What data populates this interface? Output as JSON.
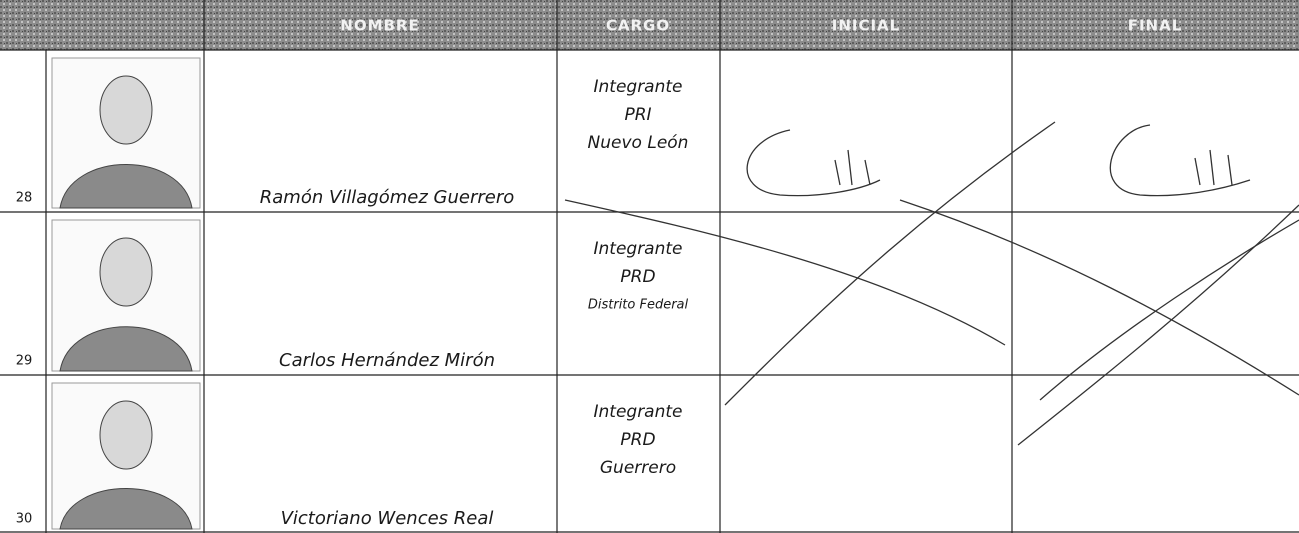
{
  "table": {
    "header": [
      "NOMBRE",
      "CARGO",
      "INICIAL",
      "FINAL"
    ],
    "rows": [
      {
        "number": "28",
        "name": "Ramón Villagómez Guerrero",
        "cargo": [
          "Integrante",
          "PRI",
          "Nuevo León"
        ]
      },
      {
        "number": "29",
        "name": "Carlos Hernández Mirón",
        "cargo": [
          "Integrante",
          "PRD",
          "Distrito Federal"
        ]
      },
      {
        "number": "30",
        "name": "Victoriano Wences Real",
        "cargo": [
          "Integrante",
          "PRD",
          "Guerrero"
        ]
      }
    ]
  }
}
